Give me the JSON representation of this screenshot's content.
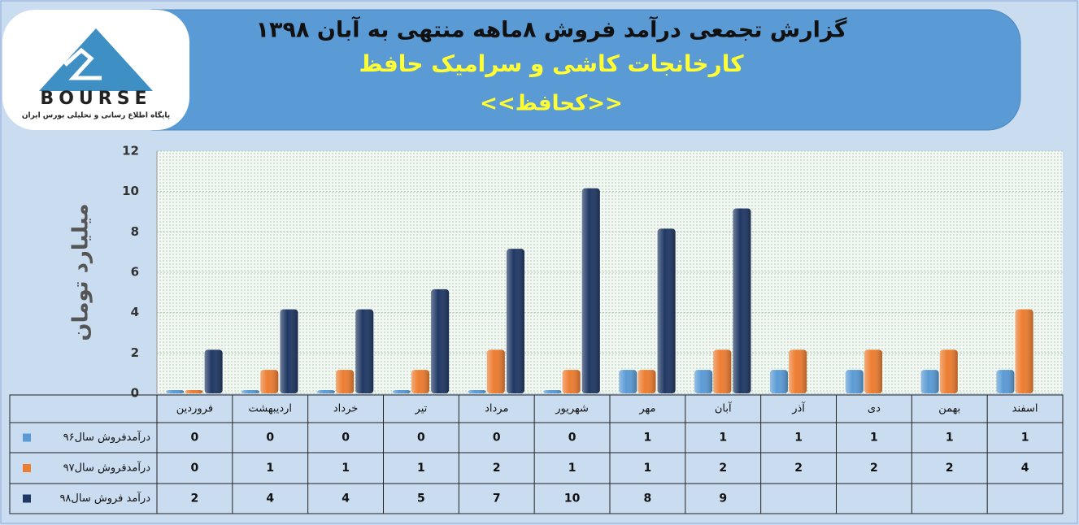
{
  "logo": {
    "name": "BOURSE",
    "tagline": "پایگاه اطلاع رسانی و تحلیلی بورس ایران"
  },
  "chart_data": {
    "type": "bar",
    "title": "گزارش تجمعی درآمد فروش ۸ماهه منتهی به آبان ۱۳۹۸",
    "subtitle": "کارخانجات کاشی و سرامیک حافظ",
    "symbol": "<<کحافظ>>",
    "y_label": "میلیارد تومان",
    "categories": [
      "فروردین",
      "اردیبهشت",
      "خرداد",
      "تیر",
      "مرداد",
      "شهریور",
      "مهر",
      "آبان",
      "آذر",
      "دی",
      "بهمن",
      "اسفند"
    ],
    "series": [
      {
        "name": "درآمدفروش سال۹۶",
        "color": "#5b9bd5",
        "values": [
          0,
          0,
          0,
          0,
          0,
          0,
          1,
          1,
          1,
          1,
          1,
          1
        ]
      },
      {
        "name": "درآمدفروش سال۹۷",
        "color": "#ed7d31",
        "values": [
          0,
          1,
          1,
          1,
          2,
          1,
          1,
          2,
          2,
          2,
          2,
          4
        ]
      },
      {
        "name": "درآمد فروش سال۹۸",
        "color": "#203864",
        "values": [
          2,
          4,
          4,
          5,
          7,
          10,
          8,
          9,
          null,
          null,
          null,
          null
        ]
      }
    ],
    "ylim": [
      0,
      12
    ],
    "yticks": [
      0,
      2,
      4,
      6,
      8,
      10,
      12
    ],
    "grid": true,
    "data_table": true
  }
}
